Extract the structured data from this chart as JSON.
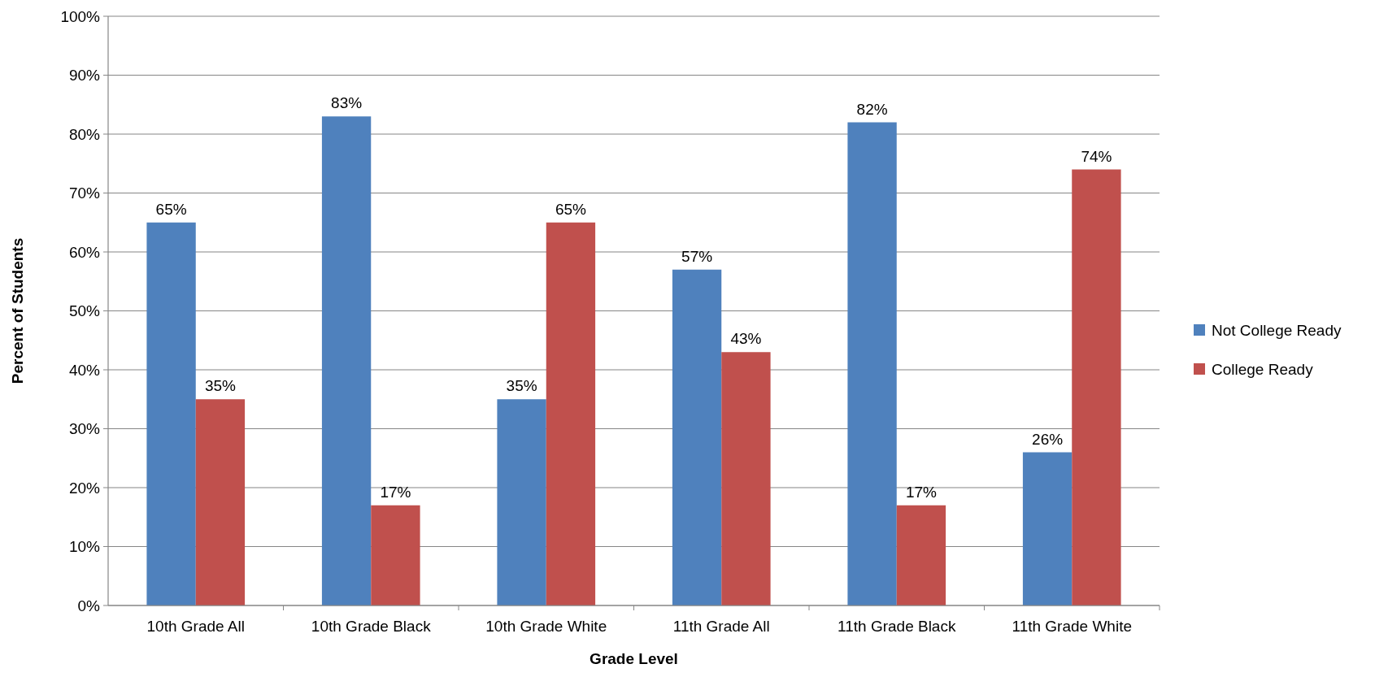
{
  "chart_data": {
    "type": "bar",
    "xlabel": "Grade Level",
    "ylabel": "Percent of Students",
    "categories": [
      "10th Grade All",
      "10th Grade Black",
      "10th Grade White",
      "11th Grade All",
      "11th Grade Black",
      "11th Grade White"
    ],
    "series": [
      {
        "name": "Not College Ready",
        "color": "#4f81bd",
        "values": [
          65,
          83,
          35,
          57,
          82,
          26
        ],
        "value_labels": [
          "65%",
          "83%",
          "35%",
          "57%",
          "82%",
          "26%"
        ]
      },
      {
        "name": "College Ready",
        "color": "#c0504d",
        "values": [
          35,
          17,
          65,
          43,
          17,
          74
        ],
        "value_labels": [
          "35%",
          "17%",
          "65%",
          "43%",
          "17%",
          "74%"
        ]
      }
    ],
    "ylim": [
      0,
      100
    ],
    "yticks": [
      {
        "value": 0,
        "label": "0%"
      },
      {
        "value": 10,
        "label": "10%"
      },
      {
        "value": 20,
        "label": "20%"
      },
      {
        "value": 30,
        "label": "30%"
      },
      {
        "value": 40,
        "label": "40%"
      },
      {
        "value": 50,
        "label": "50%"
      },
      {
        "value": 60,
        "label": "60%"
      },
      {
        "value": 70,
        "label": "70%"
      },
      {
        "value": 80,
        "label": "80%"
      },
      {
        "value": 90,
        "label": "90%"
      },
      {
        "value": 100,
        "label": "100%"
      }
    ],
    "grid": "y",
    "legend": "right"
  }
}
